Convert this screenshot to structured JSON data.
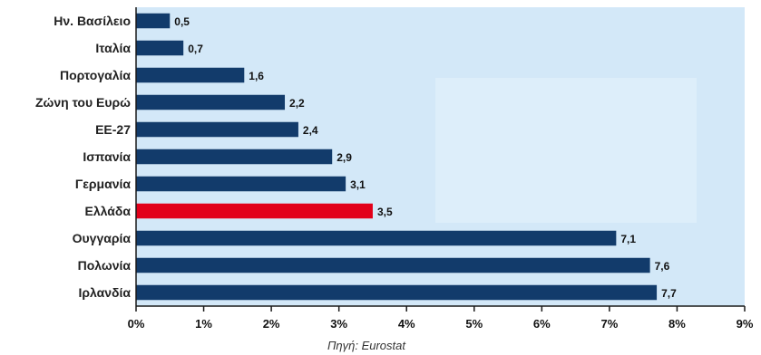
{
  "chart_data": {
    "type": "bar",
    "orientation": "horizontal",
    "categories": [
      "Ην. Βασίλειο",
      "Ιταλία",
      "Πορτογαλία",
      "Ζώνη του Ευρώ",
      "ΕΕ-27",
      "Ισπανία",
      "Γερμανία",
      "Ελλάδα",
      "Ουγγαρία",
      "Πολωνία",
      "Ιρλανδία"
    ],
    "values": [
      0.5,
      0.7,
      1.6,
      2.2,
      2.4,
      2.9,
      3.1,
      3.5,
      7.1,
      7.6,
      7.7
    ],
    "value_labels": [
      "0,5",
      "0,7",
      "1,6",
      "2,2",
      "2,4",
      "2,9",
      "3,1",
      "3,5",
      "7,1",
      "7,6",
      "7,7"
    ],
    "highlight_category": "Ελλάδα",
    "xlim": [
      0,
      9
    ],
    "x_ticks": [
      0,
      1,
      2,
      3,
      4,
      5,
      6,
      7,
      8,
      9
    ],
    "x_tick_labels": [
      "0%",
      "1%",
      "2%",
      "3%",
      "4%",
      "5%",
      "6%",
      "7%",
      "8%",
      "9%"
    ],
    "grid": false,
    "source": "Πηγή: Eurostat",
    "colors": {
      "bar": "#123b6b",
      "highlight": "#e2001a",
      "plot_background": "#d3e8f8",
      "inner_panel": "#ddeefa",
      "axis": "#1a1a1a"
    }
  }
}
